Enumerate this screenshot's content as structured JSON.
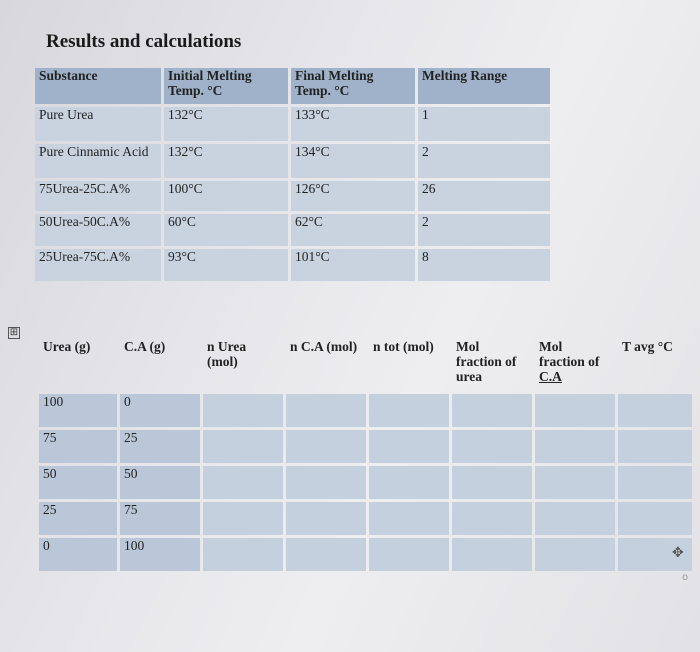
{
  "title": "Results and calculations",
  "table1": {
    "headers": [
      "Substance",
      "Initial Melting Temp. °C",
      "Final Melting Temp. °C",
      "Melting Range"
    ],
    "rows": [
      [
        "Pure Urea",
        "132°C",
        "133°C",
        "1"
      ],
      [
        "Pure Cinnamic Acid",
        "132°C",
        "134°C",
        "2"
      ],
      [
        "75Urea-25C.A%",
        "100°C",
        "126°C",
        "26"
      ],
      [
        "50Urea-50C.A%",
        "60°C",
        "62°C",
        "2"
      ],
      [
        "25Urea-75C.A%",
        "93°C",
        "101°C",
        "8"
      ]
    ]
  },
  "table2": {
    "headers": [
      "Urea (g)",
      "C.A (g)",
      "n Urea (mol)",
      "n C.A (mol)",
      "n tot (mol)",
      "Mol fraction of urea",
      "Mol fraction of ",
      "T avg °C"
    ],
    "header_underlined_part": "C.A",
    "rows": [
      [
        "100",
        "0"
      ],
      [
        "75",
        "25"
      ],
      [
        "50",
        "50"
      ],
      [
        "25",
        "75"
      ],
      [
        "0",
        "100"
      ]
    ]
  },
  "icons": {
    "plus": "⊞",
    "move": "✥",
    "o": "o"
  }
}
